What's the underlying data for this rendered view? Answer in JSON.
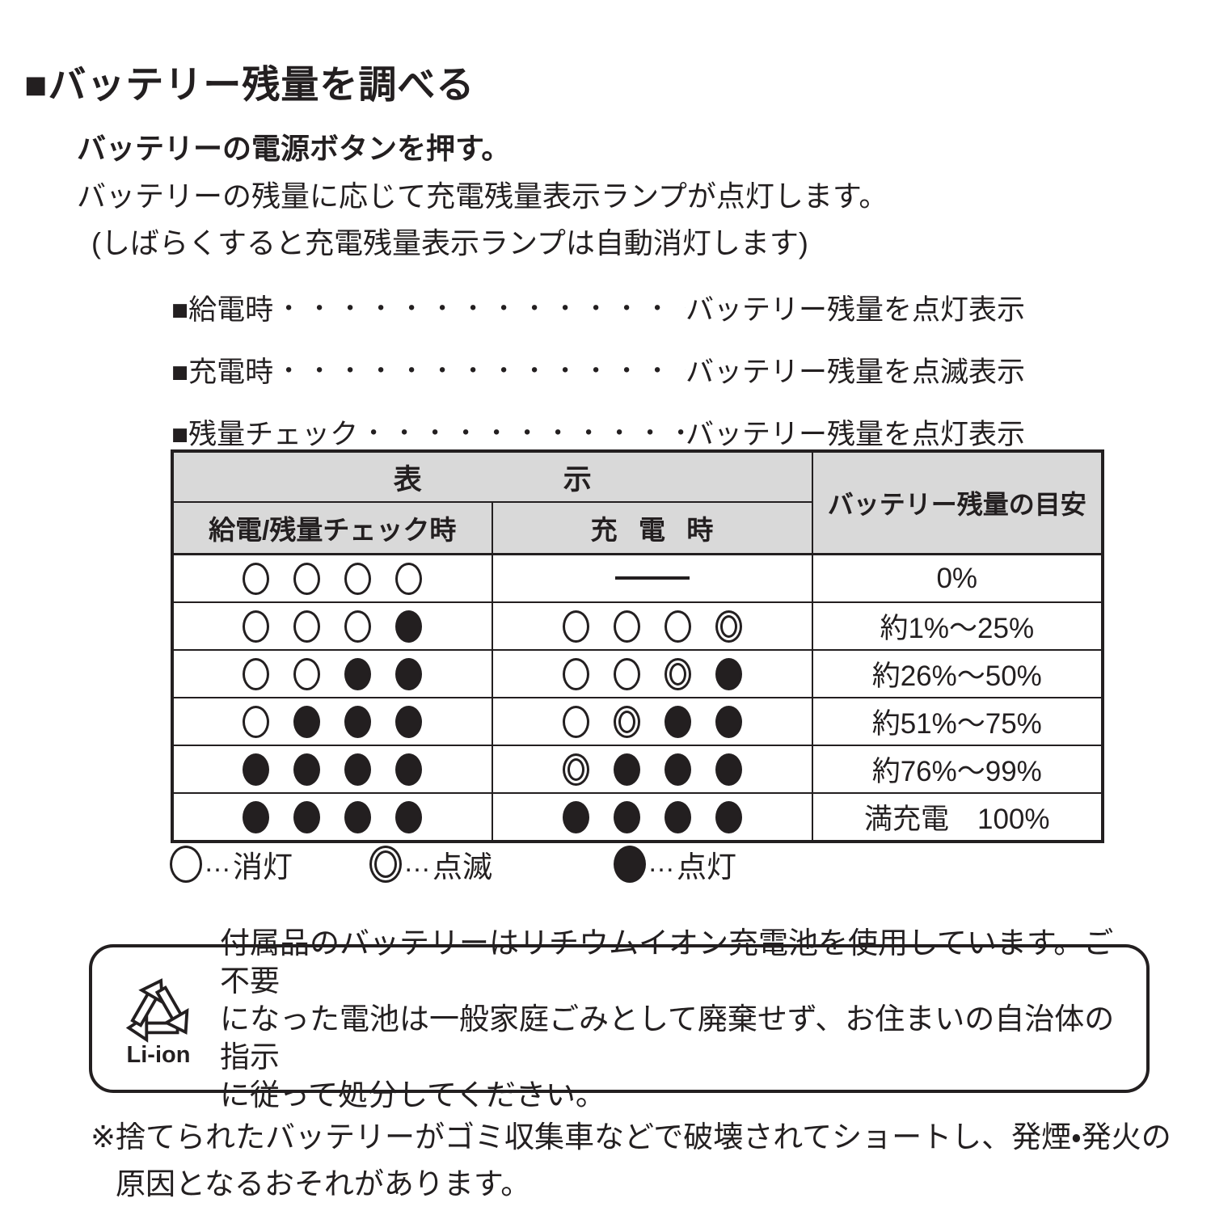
{
  "colors": {
    "ink": "#231f20",
    "header_bg": "#d9d9d9",
    "page_bg": "#ffffff"
  },
  "page": {
    "heading": "■バッテリー残量を調べる",
    "step": "バッテリーの電源ボタンを押す。",
    "description": "バッテリーの残量に応じて充電残量表示ランプが点灯します。",
    "description_note": "(しばらくすると充電残量表示ランプは自動消灯します)"
  },
  "jump_lines": [
    {
      "label": "■給電時",
      "leader": "・・・・・・・・・・・・・・・・・・・・・・・・",
      "value": "バッテリー残量を点灯表示"
    },
    {
      "label": "■充電時",
      "leader": "・・・・・・・・・・・・・・・・・・・・・・・・",
      "value": "バッテリー残量を点滅表示"
    },
    {
      "label": "■残量チェック",
      "leader": "・・・・・・・・・・・・・・・・・・・・",
      "value": "バッテリー残量を点灯表示"
    }
  ],
  "table": {
    "display_header": "表示",
    "col_supply_header": "給電/残量チェック時",
    "col_charge_header": "充電時",
    "col_level_header": "バッテリー残量の目安",
    "rows": [
      {
        "supply": [
          "off",
          "off",
          "off",
          "off"
        ],
        "charge": null,
        "level": "0%"
      },
      {
        "supply": [
          "off",
          "off",
          "off",
          "on"
        ],
        "charge": [
          "off",
          "off",
          "off",
          "blink"
        ],
        "level": "約1%～25%"
      },
      {
        "supply": [
          "off",
          "off",
          "on",
          "on"
        ],
        "charge": [
          "off",
          "off",
          "blink",
          "on"
        ],
        "level": "約26%～50%"
      },
      {
        "supply": [
          "off",
          "on",
          "on",
          "on"
        ],
        "charge": [
          "off",
          "blink",
          "on",
          "on"
        ],
        "level": "約51%～75%"
      },
      {
        "supply": [
          "on",
          "on",
          "on",
          "on"
        ],
        "charge": [
          "blink",
          "on",
          "on",
          "on"
        ],
        "level": "約76%～99%"
      },
      {
        "supply": [
          "on",
          "on",
          "on",
          "on"
        ],
        "charge": [
          "on",
          "on",
          "on",
          "on"
        ],
        "level": "満充電　100%"
      }
    ]
  },
  "legend": [
    {
      "state": "off",
      "separator": "…",
      "label": "消灯"
    },
    {
      "state": "blink",
      "separator": "…",
      "label": "点滅"
    },
    {
      "state": "on",
      "separator": "…",
      "label": "点灯"
    }
  ],
  "recycle_box": {
    "icon": "recycling-mobius-loop",
    "icon_label": "Li-ion",
    "lines": [
      "付属品のバッテリーはリチウムイオン充電池を使用しています。ご不要",
      "になった電池は一般家庭ごみとして廃棄せず、お住まいの自治体の指示",
      "に従って処分してください。"
    ]
  },
  "footnote": {
    "marker": "※",
    "lines": [
      "捨てられたバッテリーがゴミ収集車などで破壊されてショートし、発煙・発火の",
      "原因となるおそれがあります。"
    ]
  }
}
